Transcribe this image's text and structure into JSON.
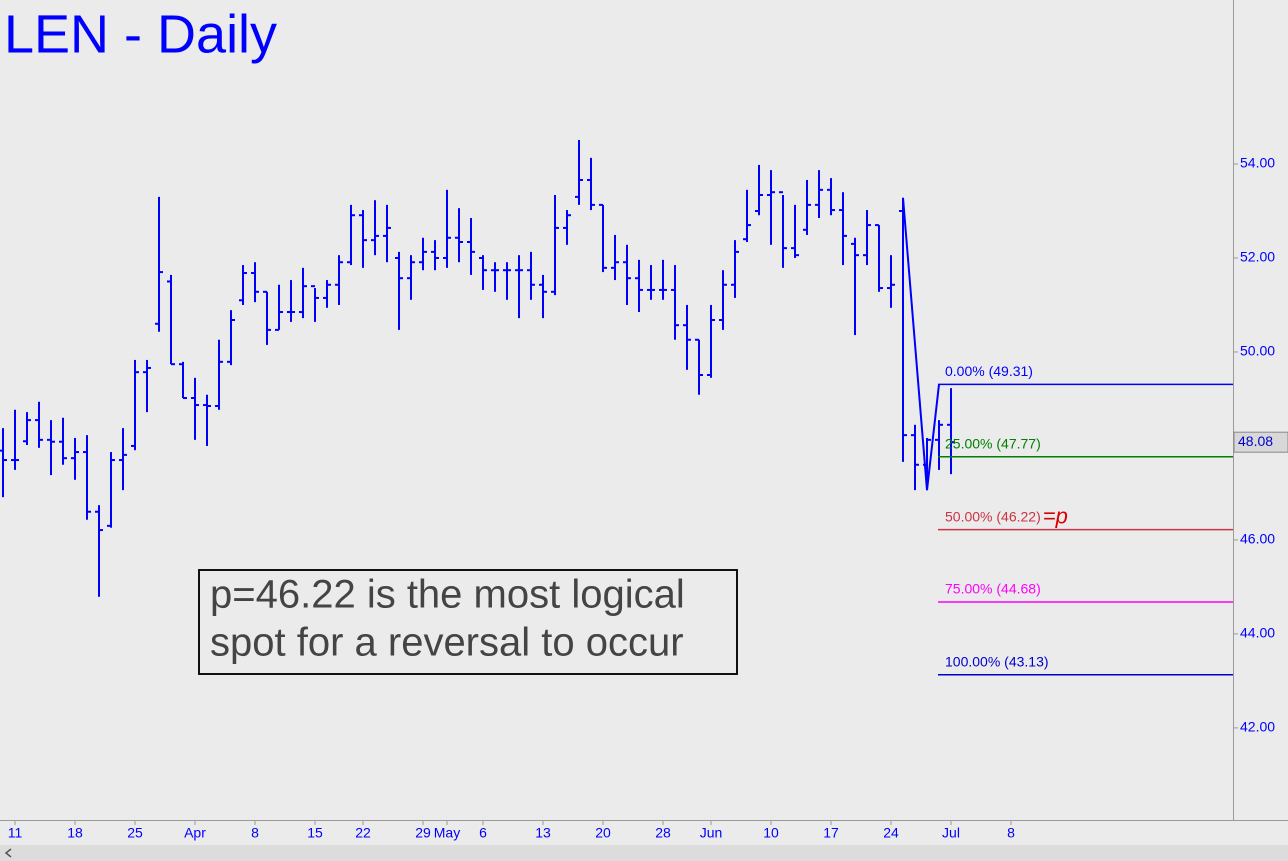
{
  "chart_data": {
    "type": "ohlc",
    "title": "LEN - Daily",
    "color": "#0000ff",
    "categories": [
      null,
      "11",
      null,
      null,
      null,
      null,
      "18",
      null,
      null,
      null,
      null,
      "25",
      null,
      null,
      null,
      null,
      "Apr",
      null,
      null,
      null,
      null,
      "8",
      null,
      null,
      null,
      null,
      "15",
      null,
      null,
      null,
      "22",
      null,
      null,
      null,
      null,
      "29",
      null,
      "May",
      null,
      null,
      "6",
      null,
      null,
      null,
      null,
      "13",
      null,
      null,
      null,
      null,
      "20",
      null,
      null,
      null,
      null,
      "28",
      null,
      null,
      null,
      "Jun",
      null,
      null,
      null,
      null,
      "10",
      null,
      null,
      null,
      null,
      "17",
      null,
      null,
      null,
      null,
      "24",
      null,
      null,
      null,
      null,
      "Jul",
      null,
      null,
      null,
      null,
      "8",
      null,
      null,
      null,
      null,
      null,
      null,
      null,
      null,
      null,
      null,
      null,
      null,
      null,
      null,
      null,
      null,
      null,
      null
    ],
    "open": [
      47.9,
      47.7,
      48.1,
      48.55,
      48.13,
      48.09,
      47.74,
      47.87,
      46.6,
      46.3,
      47.7,
      48.0,
      49.57,
      50.6,
      51.5,
      49.74,
      49.02,
      48.87,
      48.85,
      49.79,
      51.1,
      51.68,
      51.28,
      50.47,
      50.85,
      50.85,
      51.4,
      51.15,
      51.43,
      51.91,
      52.91,
      52.38,
      52.47,
      52.0,
      51.57,
      51.91,
      52.13,
      52.0,
      52.43,
      52.34,
      52.0,
      51.74,
      51.74,
      51.74,
      51.74,
      51.43,
      51.28,
      52.64,
      53.3,
      53.66,
      53.13,
      51.79,
      51.91,
      51.57,
      51.32,
      51.32,
      51.32,
      50.57,
      50.26,
      49.51,
      50.68,
      51.43,
      52.4,
      53.0,
      53.34,
      53.4,
      52.21,
      52.6,
      53.13,
      53.45,
      53.02,
      52.3,
      52.06,
      52.7,
      51.36,
      53.0,
      48.23,
      47.6,
      48.13,
      48.45,
      null,
      null,
      null,
      null,
      null,
      null,
      null,
      null,
      null,
      null,
      null,
      null,
      null,
      null,
      null,
      null,
      null,
      null,
      null,
      null,
      null,
      null,
      null
    ],
    "high": [
      48.38,
      48.77,
      48.72,
      48.94,
      48.55,
      48.6,
      48.17,
      48.23,
      46.74,
      47.87,
      48.38,
      49.83,
      49.83,
      53.3,
      51.64,
      49.79,
      49.45,
      49.09,
      50.26,
      50.89,
      51.85,
      51.91,
      51.28,
      51.43,
      51.53,
      51.79,
      51.36,
      51.53,
      52.06,
      53.13,
      53.02,
      53.23,
      53.13,
      52.13,
      52.06,
      52.43,
      52.38,
      53.45,
      53.06,
      52.85,
      52.06,
      51.91,
      51.91,
      52.06,
      52.13,
      51.64,
      53.34,
      53.02,
      54.51,
      54.13,
      53.13,
      52.49,
      52.28,
      51.96,
      51.85,
      51.96,
      51.85,
      51.0,
      50.26,
      51.0,
      51.74,
      52.38,
      53.45,
      53.98,
      53.87,
      53.34,
      53.13,
      53.66,
      53.87,
      53.7,
      53.4,
      52.43,
      53.02,
      52.7,
      52.06,
      53.28,
      48.45,
      48.17,
      48.55,
      49.23,
      null,
      null,
      null,
      null,
      null,
      null,
      null,
      null,
      null,
      null,
      null,
      null,
      null,
      null,
      null,
      null,
      null,
      null,
      null,
      null,
      null,
      null,
      null
    ],
    "low": [
      46.91,
      47.49,
      48.02,
      47.96,
      47.38,
      47.6,
      47.28,
      46.43,
      44.79,
      46.26,
      47.06,
      47.91,
      48.72,
      50.43,
      49.74,
      49.02,
      48.13,
      48.0,
      48.77,
      49.72,
      51.0,
      51.06,
      50.15,
      50.47,
      50.64,
      50.72,
      50.64,
      50.94,
      51.0,
      51.85,
      51.79,
      52.06,
      51.91,
      50.47,
      51.11,
      51.74,
      51.74,
      51.79,
      51.91,
      51.64,
      51.32,
      51.28,
      51.11,
      50.72,
      51.11,
      50.72,
      51.21,
      52.28,
      53.13,
      53.02,
      51.7,
      51.53,
      51.0,
      50.85,
      51.11,
      51.11,
      50.26,
      49.62,
      49.09,
      49.45,
      50.47,
      51.15,
      52.34,
      52.91,
      52.28,
      51.79,
      52.0,
      52.49,
      52.85,
      52.91,
      51.85,
      50.36,
      51.85,
      51.28,
      50.94,
      47.66,
      47.06,
      47.06,
      47.49,
      47.4,
      null,
      null,
      null,
      null,
      null,
      null,
      null,
      null,
      null,
      null,
      null,
      null,
      null,
      null,
      null,
      null,
      null,
      null,
      null,
      null,
      null,
      null,
      null
    ],
    "close": [
      47.7,
      47.7,
      48.55,
      48.13,
      48.09,
      47.74,
      47.87,
      46.6,
      46.21,
      47.7,
      47.81,
      49.57,
      49.66,
      51.7,
      49.74,
      49.02,
      48.87,
      48.85,
      49.79,
      50.68,
      51.68,
      51.28,
      50.47,
      50.85,
      50.85,
      51.4,
      51.15,
      51.43,
      51.91,
      52.91,
      52.38,
      52.47,
      52.64,
      51.57,
      51.91,
      52.13,
      52.0,
      52.43,
      52.34,
      52.13,
      51.74,
      51.74,
      51.74,
      51.74,
      51.43,
      51.28,
      52.64,
      52.91,
      53.66,
      53.13,
      51.79,
      51.91,
      51.57,
      51.32,
      51.32,
      51.32,
      50.57,
      50.26,
      49.51,
      50.68,
      51.43,
      52.13,
      52.7,
      53.34,
      53.4,
      52.21,
      52.06,
      53.13,
      53.45,
      53.02,
      52.47,
      52.06,
      52.7,
      51.36,
      51.43,
      48.23,
      47.6,
      48.13,
      48.45,
      48.08,
      null,
      null,
      null,
      null,
      null,
      null,
      null,
      null,
      null,
      null,
      null,
      null,
      null,
      null,
      null,
      null,
      null,
      null,
      null,
      null,
      null,
      null,
      null
    ],
    "ylim": [
      40.04,
      57.49
    ],
    "yticks": [
      {
        "value": 42,
        "label": "42.00"
      },
      {
        "value": 44,
        "label": "44.00"
      },
      {
        "value": 46,
        "label": "46.00"
      },
      {
        "value": 48,
        "label": "48.00"
      },
      {
        "value": 50,
        "label": "50.00"
      },
      {
        "value": 52,
        "label": "52.00"
      },
      {
        "value": 54,
        "label": "54.00"
      }
    ],
    "last_price": 48.08,
    "swing": {
      "x": [
        75,
        77,
        78
      ],
      "values": [
        53.28,
        47.06,
        49.31
      ]
    },
    "levels": [
      {
        "label": "0.00% (49.31)",
        "value": 49.31,
        "color": "#0000ff"
      },
      {
        "label": "25.00% (47.77)",
        "value": 47.77,
        "color": "#008000"
      },
      {
        "label": "50.00% (46.22)",
        "value": 46.22,
        "color": "#cc3344",
        "note": "=p"
      },
      {
        "label": "75.00% (44.68)",
        "value": 44.68,
        "color": "#ff00ff"
      },
      {
        "label": "100.00% (43.13)",
        "value": 43.13,
        "color": "#0000cc"
      }
    ],
    "annotation": [
      "p=46.22 is the most logical",
      "spot for a reversal to occur"
    ]
  }
}
